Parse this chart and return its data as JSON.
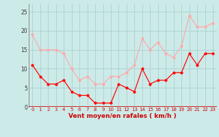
{
  "hours": [
    0,
    1,
    2,
    3,
    4,
    5,
    6,
    7,
    8,
    9,
    10,
    11,
    12,
    13,
    14,
    15,
    16,
    17,
    18,
    19,
    20,
    21,
    22,
    23
  ],
  "wind_avg": [
    11,
    8,
    6,
    6,
    7,
    4,
    3,
    3,
    1,
    1,
    1,
    6,
    5,
    4,
    10,
    6,
    7,
    7,
    9,
    9,
    14,
    11,
    14,
    14
  ],
  "wind_gust": [
    19,
    15,
    15,
    15,
    14,
    10,
    7,
    8,
    6,
    6,
    8,
    8,
    9,
    11,
    18,
    15,
    17,
    14,
    13,
    16,
    24,
    21,
    21,
    22
  ],
  "avg_color": "#ff0000",
  "gust_color": "#ffaaaa",
  "bg_color": "#cceae8",
  "grid_color": "#aacfcd",
  "xlabel": "Vent moyen/en rafales ( km/h )",
  "ylim": [
    0,
    27
  ],
  "yticks": [
    0,
    5,
    10,
    15,
    20,
    25
  ]
}
